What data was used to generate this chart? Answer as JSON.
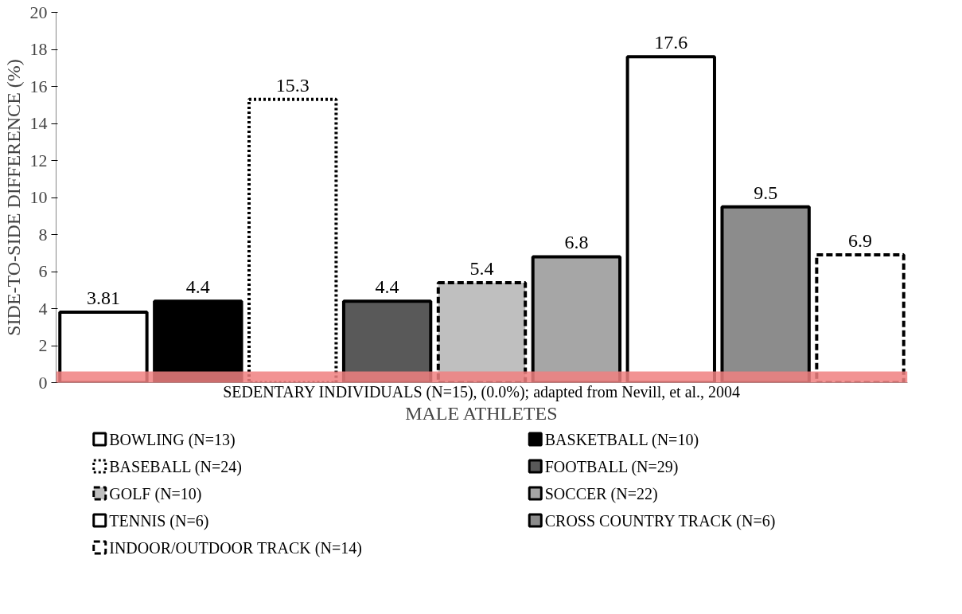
{
  "chart_data": {
    "type": "bar",
    "xlabel": "MALE ATHLETES",
    "ylabel": "SIDE-TO-SIDE DIFFERENCE (%)",
    "categories": [
      null,
      null,
      null,
      null,
      null,
      null,
      null,
      null,
      null
    ],
    "series": [
      {
        "name": "BOWLING (N=13)",
        "color": "#ffffff",
        "values": [
          3.81,
          null,
          null,
          null,
          null,
          null,
          null,
          null,
          null
        ],
        "line_style": "solid"
      },
      {
        "name": "BASKETBALL (N=10)",
        "color": "#000000",
        "values": [
          null,
          4.4,
          null,
          null,
          null,
          null,
          null,
          null,
          null
        ],
        "line_style": "solid"
      },
      {
        "name": "BASEBALL (N=24)",
        "color": "#ffffff",
        "values": [
          null,
          null,
          15.3,
          null,
          null,
          null,
          null,
          null,
          null
        ],
        "line_style": "dotted"
      },
      {
        "name": "FOOTBALL (N=29)",
        "color": "#595959",
        "values": [
          null,
          null,
          null,
          4.4,
          null,
          null,
          null,
          null,
          null
        ],
        "line_style": "solid"
      },
      {
        "name": "GOLF (N=10)",
        "color": "#bfbfbf",
        "values": [
          null,
          null,
          null,
          null,
          5.4,
          null,
          null,
          null,
          null
        ],
        "line_style": "dashed"
      },
      {
        "name": "SOCCER (N=22)",
        "color": "#a6a6a6",
        "values": [
          null,
          null,
          null,
          null,
          null,
          6.8,
          null,
          null,
          null
        ],
        "line_style": "solid"
      },
      {
        "name": "TENNIS (N=6)",
        "color": "#ffffff",
        "values": [
          null,
          null,
          null,
          null,
          null,
          null,
          17.6,
          null,
          null
        ],
        "line_style": "solid"
      },
      {
        "name": "CROSS COUNTRY TRACK (N=6)",
        "color": "#8c8c8c",
        "values": [
          null,
          null,
          null,
          null,
          null,
          null,
          null,
          9.5,
          null
        ],
        "line_style": "solid"
      },
      {
        "name": "INDOOR/OUTDOOR TRACK (N=14)",
        "color": "#ffffff",
        "values": [
          null,
          null,
          null,
          null,
          null,
          null,
          null,
          null,
          6.9
        ],
        "line_style": "dashed"
      }
    ],
    "ylim": [
      0,
      20
    ],
    "yticks": [
      0,
      2,
      4,
      6,
      8,
      10,
      12,
      14,
      16,
      18,
      20
    ],
    "grid": false,
    "legend": "bottom",
    "data_labels": true,
    "ref_lines": [
      {
        "axis": "y",
        "value": 0,
        "label": "SEDENTARY INDIVIDUALS (N=15), (0.0%); adapted from Nevill, et al., 2004",
        "color": "#f08080"
      }
    ]
  }
}
